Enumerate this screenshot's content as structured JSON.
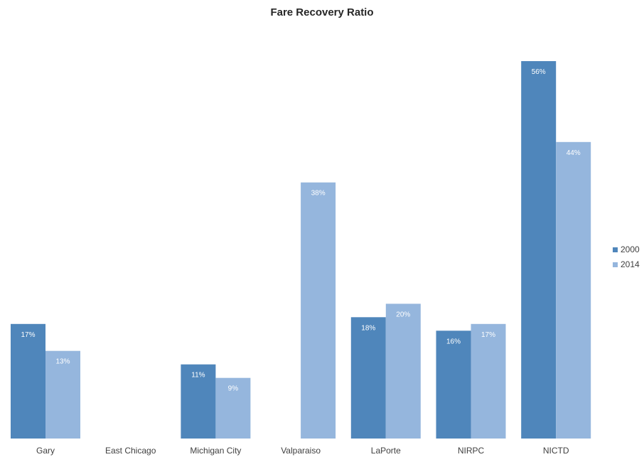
{
  "chart_data": {
    "type": "bar",
    "title": "Fare Recovery Ratio",
    "xlabel": "",
    "ylabel": "",
    "categories": [
      "Gary",
      "East Chicago",
      "Michigan City",
      "Valparaiso",
      "LaPorte",
      "NIRPC",
      "NICTD"
    ],
    "series": [
      {
        "name": "2000",
        "color": "#4f86bb",
        "values": [
          17,
          null,
          11,
          null,
          18,
          16,
          56
        ],
        "labels": [
          "17%",
          "",
          "11%",
          "",
          "18%",
          "16%",
          "56%"
        ]
      },
      {
        "name": "2014",
        "color": "#95b6dd",
        "values": [
          13,
          null,
          9,
          38,
          20,
          17,
          44
        ],
        "labels": [
          "13%",
          "",
          "9%",
          "38%",
          "20%",
          "17%",
          "44%"
        ]
      }
    ],
    "ylim": [
      0,
      56
    ],
    "grid": false,
    "legend": "right"
  }
}
